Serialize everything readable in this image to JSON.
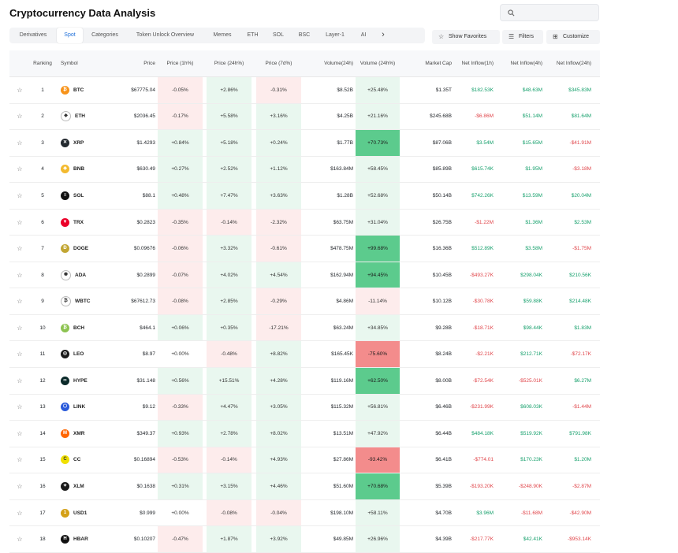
{
  "page_title": "Cryptocurrency Data Analysis",
  "search": {
    "placeholder": ""
  },
  "tabs": [
    {
      "label": "Derivatives",
      "active": false
    },
    {
      "label": "Spot",
      "active": true
    },
    {
      "label": "Categories",
      "active": false
    },
    {
      "label": "Token Unlock Overview",
      "active": false
    },
    {
      "label": "Memes",
      "active": false
    },
    {
      "label": "ETH",
      "active": false
    },
    {
      "label": "SOL",
      "active": false
    },
    {
      "label": "BSC",
      "active": false
    },
    {
      "label": "Layer-1",
      "active": false
    },
    {
      "label": "AI",
      "active": false
    }
  ],
  "tab_more_glyph": "›",
  "buttons": {
    "favorites": "Show Favorites",
    "filters": "Filters",
    "customize": "Customize"
  },
  "columns": {
    "ranking": "Ranking",
    "symbol": "Symbol",
    "price": "Price",
    "p1h": "Price (1h%)",
    "p24h": "Price (24h%)",
    "p7d": "Price (7d%)",
    "vol": "Volume(24h)",
    "volp": "Volume (24h%)",
    "mcap": "Market Cap",
    "n1h": "Net Inflow(1h)",
    "n4h": "Net Inflow(4h)",
    "n24h": "Net Inflow(24h)"
  },
  "colors": {
    "positive_text": "#16a06c",
    "negative_text": "#e0454a",
    "positive_bg_light": "#e9f7ef",
    "negative_bg_light": "#fdecec",
    "positive_bg_strong": "#5ccb8d",
    "negative_bg_strong": "#f38c8c",
    "accent": "#1e6fd9"
  },
  "rows": [
    {
      "rank": "1",
      "symbol": "BTC",
      "icon": "bitcoin-icon",
      "icon_color": "#f7931a",
      "icon_glyph": "₿",
      "price": "$67775.04",
      "p1h": "-0.05%",
      "p24h": "+2.86%",
      "p7d": "-0.31%",
      "vol": "$8.52B",
      "volp": "+25.48%",
      "mcap": "$1.35T",
      "n1h": "$182.53K",
      "n4h": "$48.63M",
      "n24h": "$345.83M"
    },
    {
      "rank": "2",
      "symbol": "ETH",
      "icon": "ethereum-icon",
      "icon_color": "#ffffff",
      "icon_glyph": "◆",
      "price": "$2036.45",
      "p1h": "-0.17%",
      "p24h": "+5.58%",
      "p7d": "+3.16%",
      "vol": "$4.25B",
      "volp": "+21.16%",
      "mcap": "$245.68B",
      "n1h": "-$6.86M",
      "n4h": "$51.14M",
      "n24h": "$81.64M"
    },
    {
      "rank": "3",
      "symbol": "XRP",
      "icon": "xrp-icon",
      "icon_color": "#23292f",
      "icon_glyph": "✕",
      "price": "$1.4293",
      "p1h": "+0.84%",
      "p24h": "+5.18%",
      "p7d": "+0.24%",
      "vol": "$1.77B",
      "volp": "+70.73%",
      "mcap": "$87.06B",
      "n1h": "$3.54M",
      "n4h": "$15.65M",
      "n24h": "-$41.91M"
    },
    {
      "rank": "4",
      "symbol": "BNB",
      "icon": "bnb-icon",
      "icon_color": "#f3ba2f",
      "icon_glyph": "◈",
      "price": "$630.49",
      "p1h": "+0.27%",
      "p24h": "+2.52%",
      "p7d": "+1.12%",
      "vol": "$163.84M",
      "volp": "+58.45%",
      "mcap": "$85.89B",
      "n1h": "$615.74K",
      "n4h": "$1.95M",
      "n24h": "-$3.18M"
    },
    {
      "rank": "5",
      "symbol": "SOL",
      "icon": "solana-icon",
      "icon_color": "#111111",
      "icon_glyph": "≡",
      "price": "$88.1",
      "p1h": "+0.48%",
      "p24h": "+7.47%",
      "p7d": "+3.63%",
      "vol": "$1.28B",
      "volp": "+52.68%",
      "mcap": "$50.14B",
      "n1h": "$742.26K",
      "n4h": "$13.59M",
      "n24h": "$20.04M"
    },
    {
      "rank": "6",
      "symbol": "TRX",
      "icon": "tron-icon",
      "icon_color": "#eb0029",
      "icon_glyph": "▼",
      "price": "$0.2823",
      "p1h": "-0.35%",
      "p24h": "-0.14%",
      "p7d": "-2.32%",
      "vol": "$63.75M",
      "volp": "+31.04%",
      "mcap": "$26.75B",
      "n1h": "-$1.22M",
      "n4h": "$1.36M",
      "n24h": "$2.53M"
    },
    {
      "rank": "7",
      "symbol": "DOGE",
      "icon": "dogecoin-icon",
      "icon_color": "#c2a633",
      "icon_glyph": "Ð",
      "price": "$0.09676",
      "p1h": "-0.06%",
      "p24h": "+3.32%",
      "p7d": "-0.61%",
      "vol": "$478.75M",
      "volp": "+99.68%",
      "mcap": "$16.36B",
      "n1h": "$512.89K",
      "n4h": "$3.58M",
      "n24h": "-$1.75M"
    },
    {
      "rank": "8",
      "symbol": "ADA",
      "icon": "cardano-icon",
      "icon_color": "#ffffff",
      "icon_glyph": "✺",
      "price": "$0.2899",
      "p1h": "-0.07%",
      "p24h": "+4.02%",
      "p7d": "+4.54%",
      "vol": "$162.94M",
      "volp": "+94.45%",
      "mcap": "$10.45B",
      "n1h": "-$493.27K",
      "n4h": "$298.04K",
      "n24h": "$210.56K"
    },
    {
      "rank": "9",
      "symbol": "WBTC",
      "icon": "wbtc-icon",
      "icon_color": "#ffffff",
      "icon_glyph": "₿",
      "price": "$67612.73",
      "p1h": "-0.08%",
      "p24h": "+2.85%",
      "p7d": "-0.29%",
      "vol": "$4.86M",
      "volp": "-11.14%",
      "mcap": "$10.12B",
      "n1h": "-$30.78K",
      "n4h": "$59.88K",
      "n24h": "$214.48K"
    },
    {
      "rank": "10",
      "symbol": "BCH",
      "icon": "bitcoin-cash-icon",
      "icon_color": "#8dc351",
      "icon_glyph": "₿",
      "price": "$464.1",
      "p1h": "+0.06%",
      "p24h": "+0.35%",
      "p7d": "-17.21%",
      "vol": "$63.24M",
      "volp": "+34.85%",
      "mcap": "$9.28B",
      "n1h": "-$18.71K",
      "n4h": "$98.44K",
      "n24h": "$1.83M"
    },
    {
      "rank": "11",
      "symbol": "LEO",
      "icon": "leo-icon",
      "icon_color": "#1a1a1a",
      "icon_glyph": "◎",
      "price": "$8.97",
      "p1h": "+0.00%",
      "p24h": "-0.48%",
      "p7d": "+8.82%",
      "vol": "$165.45K",
      "volp": "-75.60%",
      "mcap": "$8.24B",
      "n1h": "-$2.21K",
      "n4h": "$212.71K",
      "n24h": "-$72.17K"
    },
    {
      "rank": "12",
      "symbol": "HYPE",
      "icon": "hyperliquid-icon",
      "icon_color": "#0b2a2a",
      "icon_glyph": "∞",
      "price": "$31.148",
      "p1h": "+0.56%",
      "p24h": "+15.51%",
      "p7d": "+4.28%",
      "vol": "$119.16M",
      "volp": "+62.50%",
      "mcap": "$8.00B",
      "n1h": "-$72.54K",
      "n4h": "-$525.01K",
      "n24h": "$6.27M"
    },
    {
      "rank": "13",
      "symbol": "LINK",
      "icon": "chainlink-icon",
      "icon_color": "#2a5ada",
      "icon_glyph": "⬡",
      "price": "$9.12",
      "p1h": "-0.33%",
      "p24h": "+4.47%",
      "p7d": "+3.05%",
      "vol": "$115.32M",
      "volp": "+56.81%",
      "mcap": "$6.46B",
      "n1h": "-$231.99K",
      "n4h": "$608.03K",
      "n24h": "-$1.44M"
    },
    {
      "rank": "14",
      "symbol": "XMR",
      "icon": "monero-icon",
      "icon_color": "#ff6600",
      "icon_glyph": "M",
      "price": "$349.37",
      "p1h": "+0.93%",
      "p24h": "+2.78%",
      "p7d": "+8.02%",
      "vol": "$13.51M",
      "volp": "+47.92%",
      "mcap": "$6.44B",
      "n1h": "$484.18K",
      "n4h": "$519.92K",
      "n24h": "$791.98K"
    },
    {
      "rank": "15",
      "symbol": "CC",
      "icon": "canton-icon",
      "icon_color": "#f0e000",
      "icon_glyph": "C",
      "price": "$0.16894",
      "p1h": "-0.53%",
      "p24h": "-0.14%",
      "p7d": "+4.93%",
      "vol": "$27.86M",
      "volp": "-93.42%",
      "mcap": "$6.41B",
      "n1h": "-$774.01",
      "n4h": "$170.23K",
      "n24h": "$1.20M"
    },
    {
      "rank": "16",
      "symbol": "XLM",
      "icon": "stellar-icon",
      "icon_color": "#1a1a1a",
      "icon_glyph": "✦",
      "price": "$0.1638",
      "p1h": "+0.31%",
      "p24h": "+3.15%",
      "p7d": "+4.46%",
      "vol": "$51.60M",
      "volp": "+70.68%",
      "mcap": "$5.39B",
      "n1h": "-$193.20K",
      "n4h": "-$248.90K",
      "n24h": "-$2.87M"
    },
    {
      "rank": "17",
      "symbol": "USD1",
      "icon": "usd1-icon",
      "icon_color": "#d4a017",
      "icon_glyph": "1",
      "price": "$0.999",
      "p1h": "+0.00%",
      "p24h": "-0.08%",
      "p7d": "-0.04%",
      "vol": "$198.10M",
      "volp": "+58.11%",
      "mcap": "$4.70B",
      "n1h": "$3.96M",
      "n4h": "-$11.68M",
      "n24h": "-$42.90M"
    },
    {
      "rank": "18",
      "symbol": "HBAR",
      "icon": "hedera-icon",
      "icon_color": "#111111",
      "icon_glyph": "H",
      "price": "$0.10207",
      "p1h": "-0.47%",
      "p24h": "+1.87%",
      "p7d": "+3.92%",
      "vol": "$49.85M",
      "volp": "+26.96%",
      "mcap": "$4.39B",
      "n1h": "-$217.77K",
      "n4h": "$42.41K",
      "n24h": "-$953.14K"
    }
  ]
}
